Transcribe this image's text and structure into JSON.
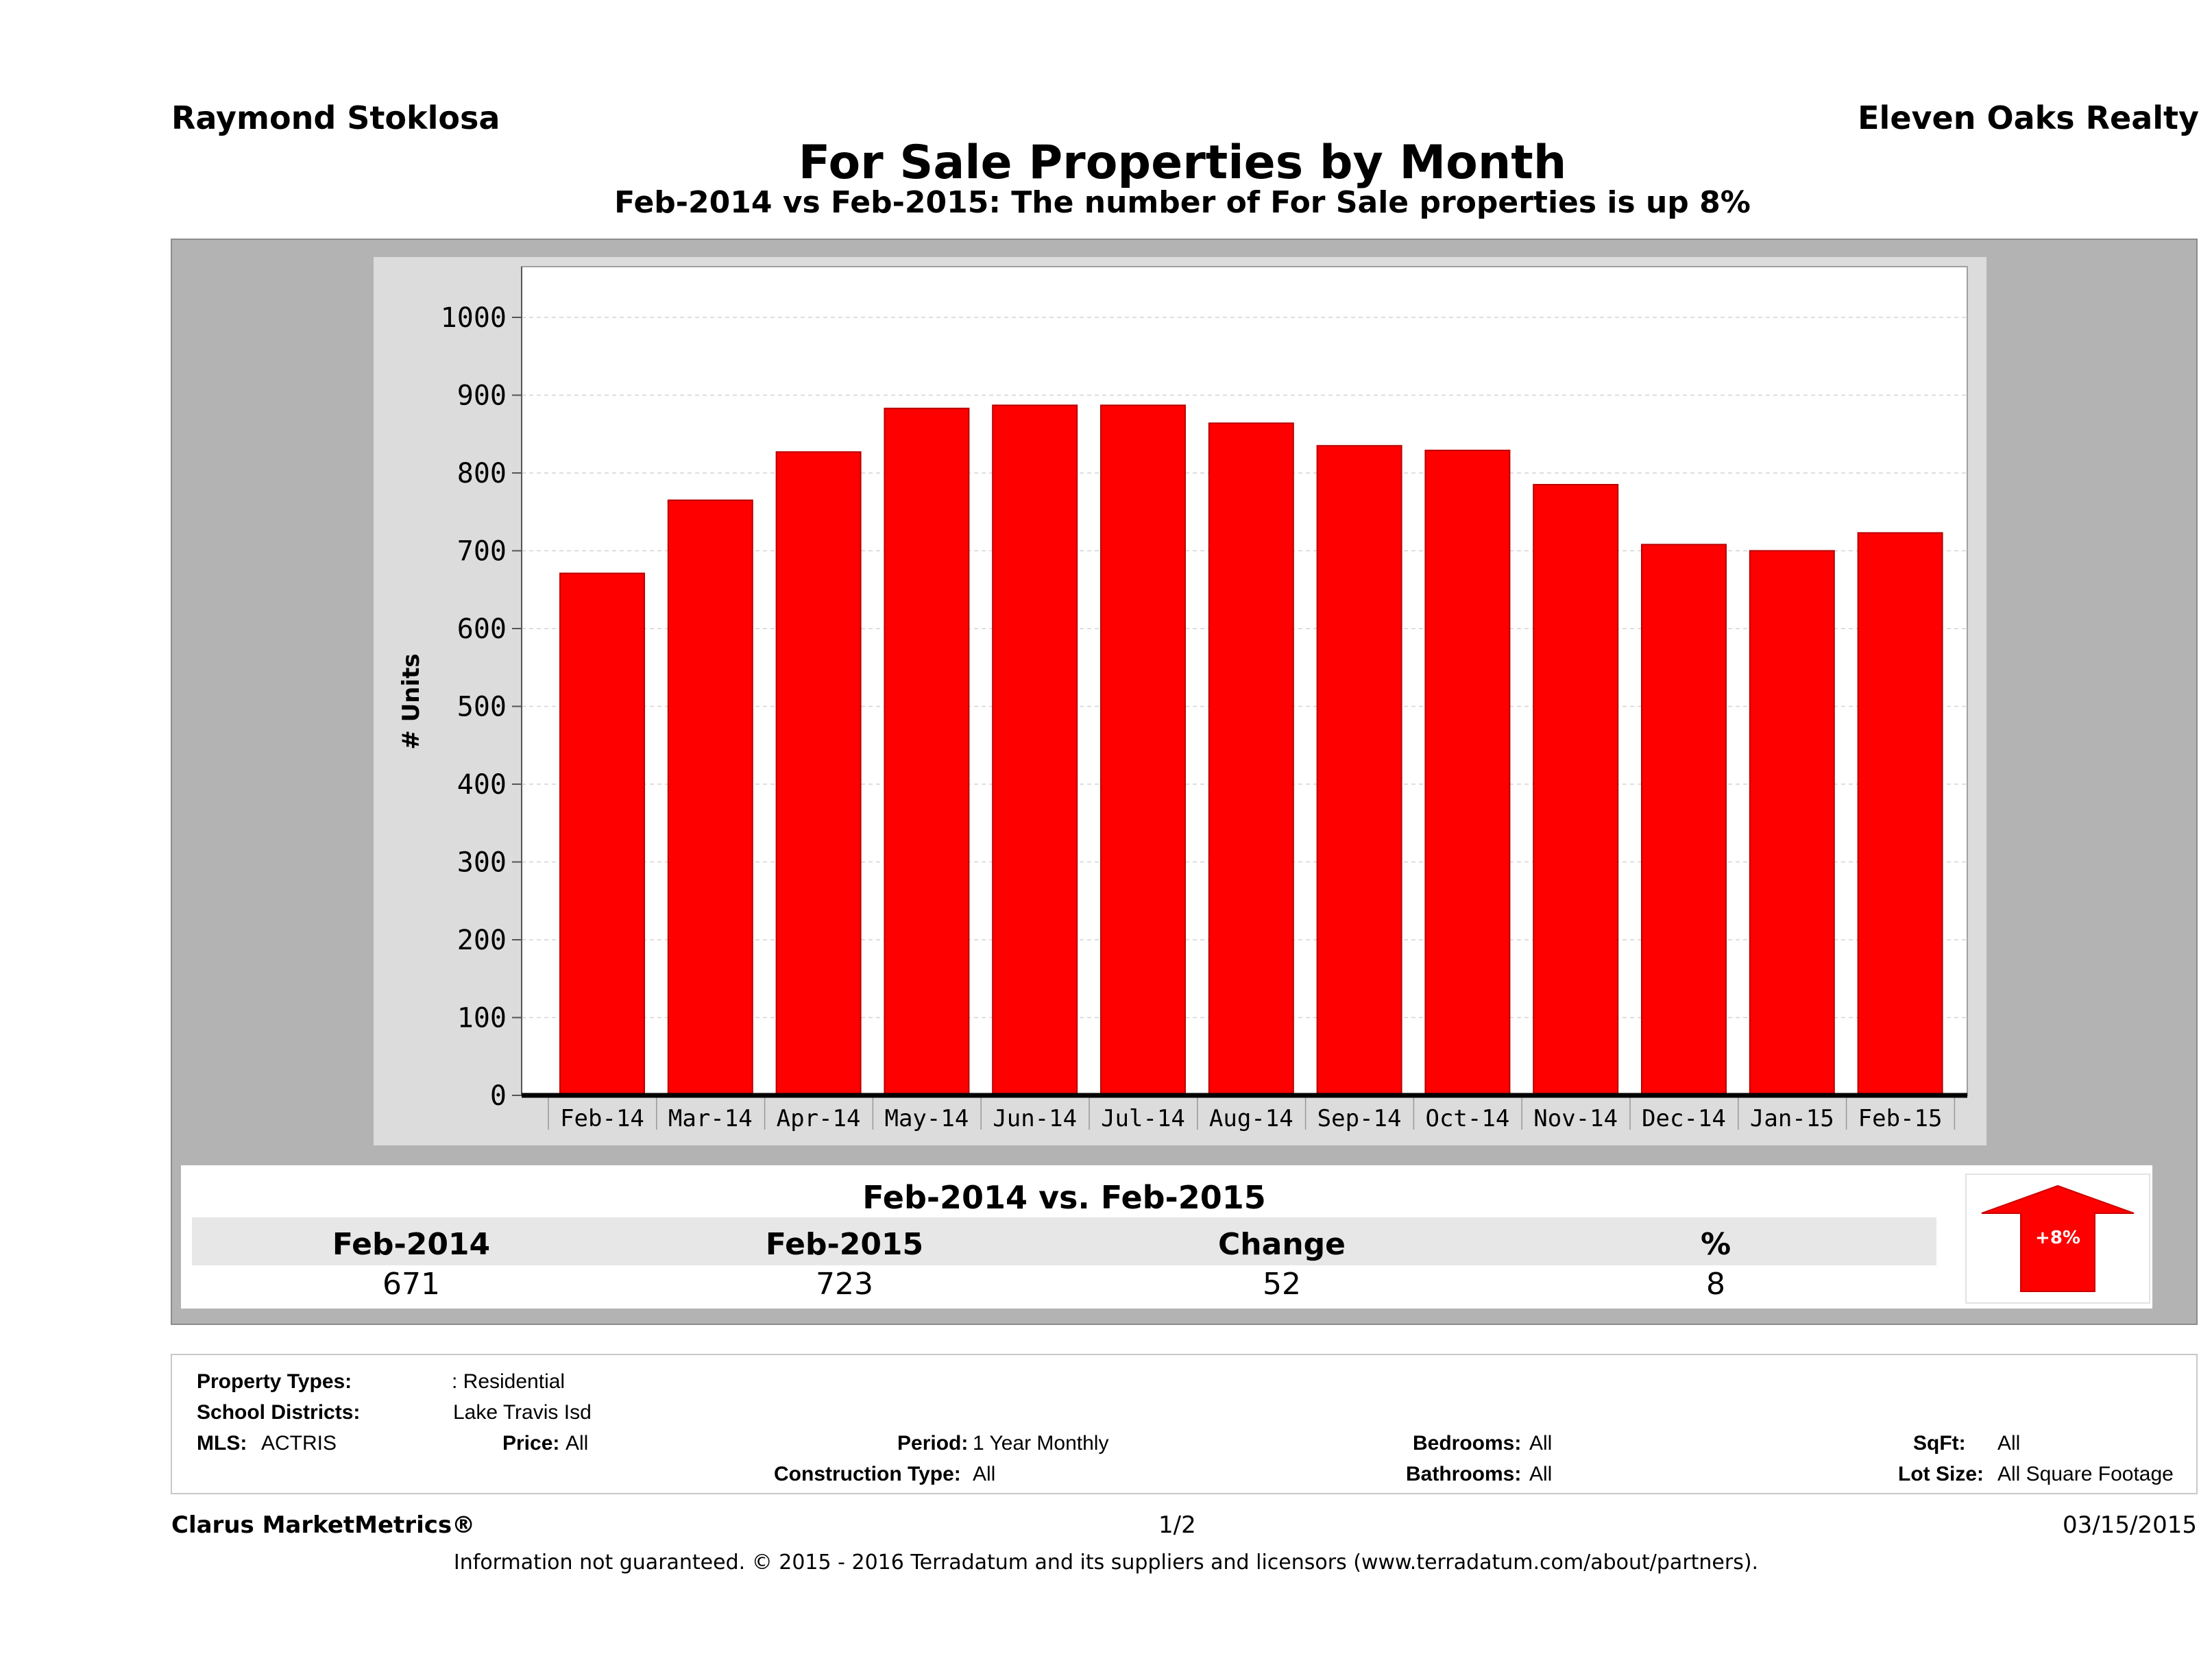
{
  "header": {
    "agent": "Raymond Stoklosa",
    "company": "Eleven Oaks Realty",
    "title": "For Sale Properties by Month",
    "subtitle": "Feb-2014 vs Feb-2015: The number of For Sale  properties is up 8%"
  },
  "chart_data": {
    "type": "bar",
    "title": "For Sale Properties by Month",
    "subtitle": "Feb-2014 vs Feb-2015: The number of For Sale  properties is up 8%",
    "ylabel": "# Units",
    "xlabel": "",
    "ylim": [
      0,
      1000
    ],
    "yticks": [
      0,
      100,
      200,
      300,
      400,
      500,
      600,
      700,
      800,
      900,
      1000
    ],
    "grid": true,
    "bar_color": "#ff0000",
    "categories": [
      "Feb-14",
      "Mar-14",
      "Apr-14",
      "May-14",
      "Jun-14",
      "Jul-14",
      "Aug-14",
      "Sep-14",
      "Oct-14",
      "Nov-14",
      "Dec-14",
      "Jan-15",
      "Feb-15"
    ],
    "values": [
      671,
      765,
      827,
      883,
      887,
      887,
      864,
      835,
      829,
      785,
      708,
      700,
      723
    ]
  },
  "summary": {
    "title": "Feb-2014 vs. Feb-2015",
    "headers": [
      "Feb-2014",
      "Feb-2015",
      "Change",
      "%"
    ],
    "values": [
      "671",
      "723",
      "52",
      "8"
    ],
    "badge": "+8%",
    "badge_color": "#ff0000"
  },
  "filters": {
    "property_types_label": "Property Types:",
    "property_types_value": ": Residential",
    "school_districts_label": "School Districts:",
    "school_districts_value": "Lake Travis Isd",
    "mls_label": "MLS:",
    "mls_value": "ACTRIS",
    "price_label": "Price:",
    "price_value": "All",
    "period_label": "Period:",
    "period_value": "1 Year Monthly",
    "construction_label": "Construction Type:",
    "construction_value": "All",
    "bedrooms_label": "Bedrooms:",
    "bedrooms_value": "All",
    "bathrooms_label": "Bathrooms:",
    "bathrooms_value": "All",
    "sqft_label": "SqFt:",
    "sqft_value": "All",
    "lotsize_label": "Lot Size:",
    "lotsize_value": "All Square Footage"
  },
  "footer": {
    "brand": "Clarus MarketMetrics®",
    "page": "1/2",
    "date": "03/15/2015",
    "disclaimer": "Information not guaranteed. © 2015 - 2016 Terradatum and its suppliers and licensors (www.terradatum.com/about/partners)."
  }
}
